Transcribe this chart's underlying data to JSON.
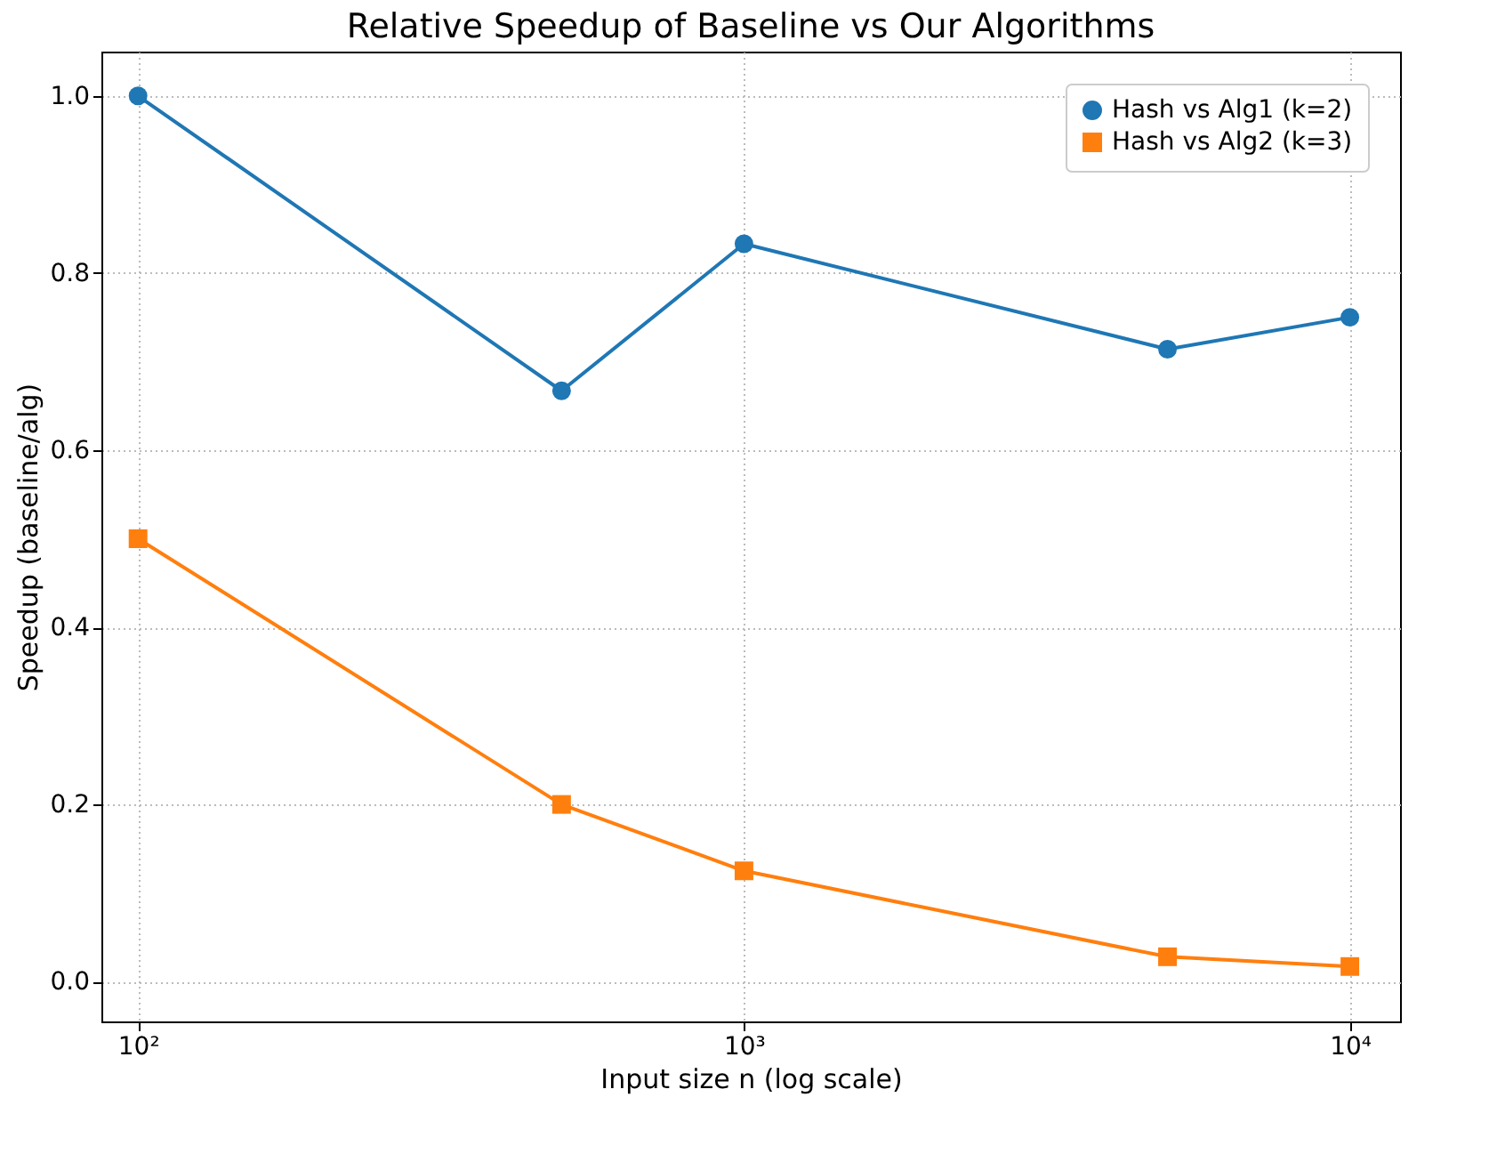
{
  "chart_data": {
    "type": "line",
    "title": "Relative Speedup of Baseline vs Our Algorithms",
    "xlabel": "Input size n (log scale)",
    "ylabel": "Speedup (baseline/alg)",
    "x": [
      100,
      500,
      1000,
      5000,
      10000
    ],
    "series": [
      {
        "name": "Hash vs Alg1 (k=2)",
        "color": "#1f77b4",
        "marker": "circle",
        "values": [
          1.0,
          0.667,
          0.833,
          0.714,
          0.75
        ]
      },
      {
        "name": "Hash vs Alg2 (k=3)",
        "color": "#ff7f0e",
        "marker": "square",
        "values": [
          0.5,
          0.2,
          0.125,
          0.028,
          0.017
        ]
      }
    ],
    "log": "x",
    "xlim": [
      87,
      12100
    ],
    "xticks": [
      {
        "value": 100,
        "label": "10²"
      },
      {
        "value": 1000,
        "label": "10³"
      },
      {
        "value": 10000,
        "label": "10⁴"
      }
    ],
    "ylim": [
      -0.045,
      1.05
    ],
    "yticks": [
      {
        "value": 0,
        "label": "0.0"
      },
      0.2,
      0.4,
      0.6,
      0.8,
      {
        "value": 1,
        "label": "1.0"
      }
    ],
    "grid": true,
    "legend": "top right",
    "line_style": "solid"
  }
}
